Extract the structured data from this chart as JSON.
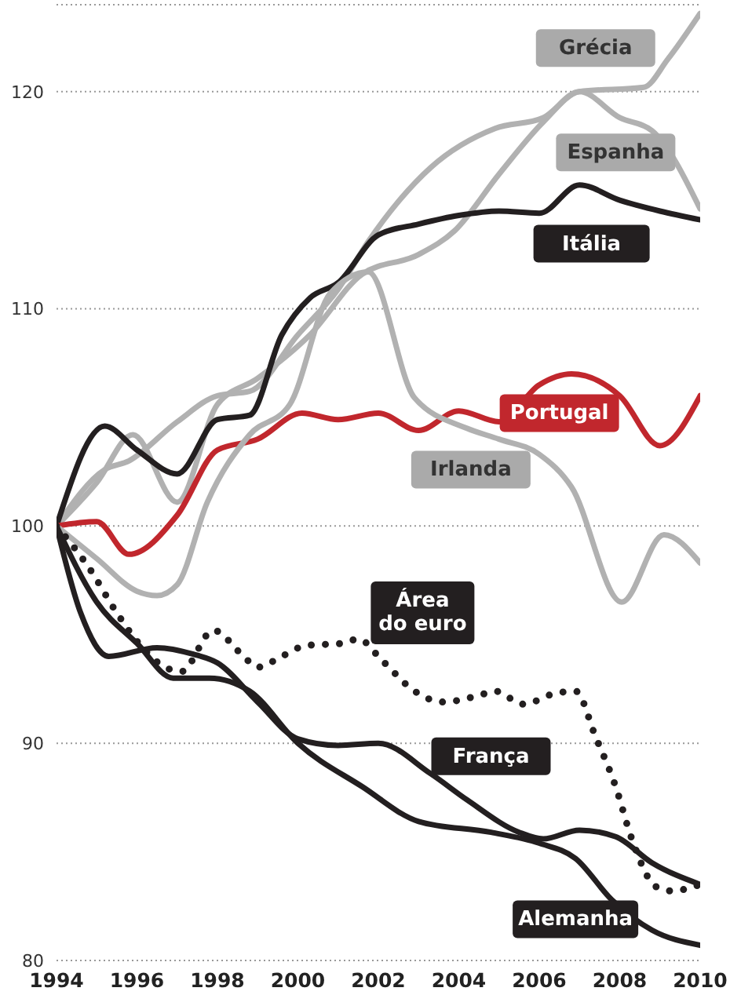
{
  "chart_data": {
    "type": "line",
    "xlim": [
      1994,
      2010
    ],
    "xticks": [
      1994,
      1996,
      1998,
      2000,
      2002,
      2004,
      2006,
      2008,
      2010
    ],
    "ylim": [
      80,
      124
    ],
    "yticks": [
      80,
      90,
      100,
      110,
      120
    ],
    "grid": "y",
    "legend": false,
    "marker": "none",
    "series": [
      {
        "name": "Grécia",
        "color": "#b1b1b1",
        "x": [
          1994,
          1995,
          1995.9,
          1997,
          1998,
          1999,
          2000.3,
          2001.6,
          2003,
          2003.9,
          2005,
          2006.1,
          2007,
          2008.6,
          2009.2,
          2010
        ],
        "values": [
          100,
          102.0,
          104.2,
          101.1,
          105.6,
          106.8,
          108.8,
          111.6,
          112.5,
          113.6,
          116.2,
          118.6,
          120.0,
          120.2,
          121.5,
          123.6
        ]
      },
      {
        "name": "Espanha",
        "color": "#b1b1b1",
        "x": [
          1994,
          1995.2,
          1995.8,
          1997,
          1998,
          1998.8,
          2000,
          2001,
          2001.75,
          2003.3,
          2004.9,
          2006.1,
          2007,
          2008,
          2008.8,
          2010
        ],
        "values": [
          100,
          102.6,
          103.0,
          104.8,
          106.0,
          106.2,
          108.8,
          110.9,
          113.1,
          116.5,
          118.3,
          118.8,
          120.0,
          118.8,
          118.2,
          114.6
        ]
      },
      {
        "name": "Itália",
        "color": "#231f20",
        "x": [
          1994,
          1995.2,
          1996,
          1997,
          1998,
          1998.8,
          1999.6,
          2000.3,
          2001,
          2002,
          2003,
          2004,
          2005,
          2006,
          2007,
          2008,
          2009,
          2010
        ],
        "values": [
          100,
          104.6,
          103.5,
          102.4,
          104.9,
          105.1,
          108.8,
          110.5,
          111.2,
          113.4,
          113.9,
          114.3,
          114.5,
          114.4,
          115.7,
          115.0,
          114.5,
          114.1
        ]
      },
      {
        "name": "Portugal",
        "color": "#c1272d",
        "x": [
          1994,
          1995,
          1995.8,
          1997,
          1998,
          1999,
          2000.1,
          2001,
          2002,
          2003,
          2004,
          2005,
          2006,
          2006.8,
          2008,
          2009,
          2010
        ],
        "values": [
          100,
          100.2,
          98.7,
          100.5,
          103.5,
          104.0,
          105.2,
          104.9,
          105.2,
          104.4,
          105.3,
          104.8,
          106.5,
          107.0,
          106.0,
          103.7,
          106.0
        ]
      },
      {
        "name": "Irlanda",
        "color": "#b1b1b1",
        "x": [
          1994,
          1995,
          1996,
          1996.5,
          1997,
          1997.75,
          1998.8,
          1999.8,
          2000.8,
          2001.75,
          2002.9,
          2004.2,
          2005,
          2006,
          2006.8,
          2008.05,
          2009.1,
          2010
        ],
        "values": [
          100,
          98.5,
          97.0,
          96.8,
          97.3,
          101.1,
          104.2,
          105.6,
          110.7,
          111.7,
          105.9,
          104.5,
          104.0,
          103.3,
          101.8,
          96.5,
          99.6,
          98.3
        ]
      },
      {
        "name": "Área do euro",
        "color": "#231f20",
        "line_style": "dotted",
        "x": [
          1994,
          1994.8,
          1995.5,
          1996,
          1996.7,
          1997.1,
          1997.9,
          1998.6,
          1999,
          1999.6,
          2000.2,
          2001.1,
          2001.5,
          2002.1,
          2002.9,
          2003.6,
          2004.5,
          2004.9,
          2005.6,
          2006.4,
          2006.9,
          2007.4,
          2007.9,
          2008.3,
          2008.9,
          2009.3,
          2010
        ],
        "values": [
          100,
          98.1,
          96.0,
          94.7,
          93.5,
          93.3,
          95.2,
          94.1,
          93.5,
          94.0,
          94.5,
          94.6,
          94.8,
          93.8,
          92.4,
          91.9,
          92.2,
          92.4,
          91.8,
          92.3,
          92.4,
          90.3,
          88.0,
          85.6,
          83.4,
          83.2,
          83.5
        ]
      },
      {
        "name": "França",
        "color": "#231f20",
        "x": [
          1994,
          1994.6,
          1995.3,
          1996.5,
          1997.4,
          1998,
          1999,
          2000,
          2001,
          2002,
          2003.3,
          2004.2,
          2005.5,
          2006.1,
          2007,
          2007.9,
          2008.8,
          2010
        ],
        "values": [
          100,
          96.0,
          94.0,
          94.4,
          94.1,
          93.7,
          91.9,
          90.2,
          89.9,
          90.0,
          88.6,
          87.4,
          85.9,
          85.6,
          86.0,
          85.7,
          84.5,
          83.5
        ]
      },
      {
        "name": "Alemanha",
        "color": "#231f20",
        "x": [
          1994,
          1995,
          1996,
          1996.9,
          1997.8,
          1998.8,
          2000,
          2001.6,
          2003,
          2004.8,
          2006,
          2006.9,
          2007.8,
          2008.8,
          2010
        ],
        "values": [
          100,
          96.5,
          94.6,
          93.0,
          93.0,
          92.4,
          90.0,
          88.0,
          86.4,
          85.9,
          85.4,
          84.7,
          82.8,
          81.4,
          80.7
        ]
      }
    ]
  }
}
